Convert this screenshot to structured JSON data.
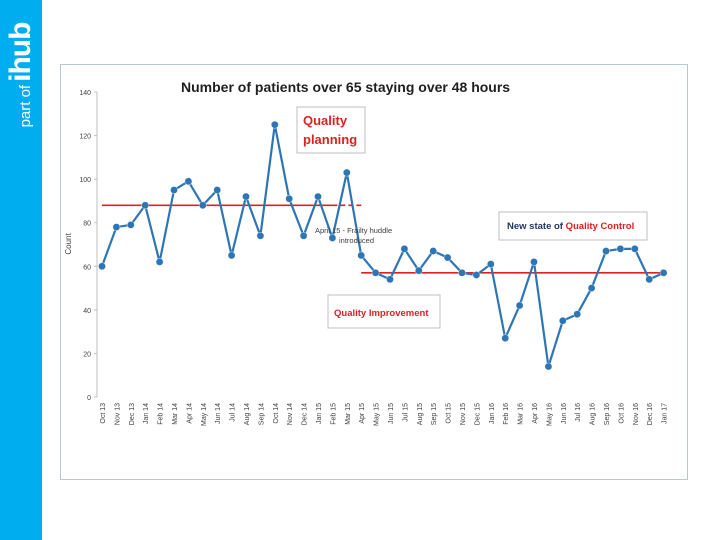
{
  "brand": {
    "prefix": "part of",
    "name": "ihub",
    "color": "#00aeef"
  },
  "chart_data": {
    "type": "line",
    "title": "Number of patients over 65 staying over 48 hours",
    "ylabel": "Count",
    "xlabel": "",
    "ylim": [
      0,
      140
    ],
    "yticks": [
      0,
      20,
      40,
      60,
      80,
      100,
      120,
      140
    ],
    "grid": false,
    "categories": [
      "Oct 13",
      "Nov 13",
      "Dec 13",
      "Jan 14",
      "Feb 14",
      "Mar 14",
      "Apr 14",
      "May 14",
      "Jun 14",
      "Jul 14",
      "Aug 14",
      "Sep 14",
      "Oct 14",
      "Nov 14",
      "Dec 14",
      "Jan 15",
      "Feb 15",
      "Mar 15",
      "Apr 15",
      "May 15",
      "Jun 15",
      "Jul 15",
      "Aug 15",
      "Sep 15",
      "Oct 15",
      "Nov 15",
      "Dec 15",
      "Jan 16",
      "Feb 16",
      "Mar 16",
      "Apr 16",
      "May 16",
      "Jun 16",
      "Jul 16",
      "Aug 16",
      "Sep 16",
      "Oct 16",
      "Nov 16",
      "Dec 16",
      "Jan 17"
    ],
    "series": [
      {
        "name": "",
        "color": "#2e75b6",
        "values": [
          60,
          78,
          79,
          88,
          62,
          95,
          99,
          88,
          95,
          65,
          92,
          74,
          125,
          91,
          74,
          92,
          73,
          103,
          65,
          57,
          54,
          68,
          58,
          67,
          64,
          57,
          56,
          61,
          27,
          42,
          62,
          14,
          35,
          38,
          50,
          67,
          68,
          68,
          54,
          57
        ]
      }
    ],
    "reference_lines": [
      {
        "value": 88,
        "from": "Oct 13",
        "to": "Feb 15",
        "color": "#e02020",
        "style": "solid"
      },
      {
        "value": 88,
        "from": "Feb 15",
        "to": "Apr 15",
        "color": "#e02020",
        "style": "dashed"
      },
      {
        "value": 57,
        "from": "Apr 15",
        "to": "Jan 17",
        "color": "#e02020",
        "style": "solid"
      }
    ],
    "annotations": {
      "quality_planning": "Quality planning",
      "frailty_huddle_line1": "April 15 - Frailty huddle",
      "frailty_huddle_line2": "introduced",
      "new_state_prefix": "New state of ",
      "new_state_highlight": "Quality Control",
      "quality_improvement": "Quality Improvement"
    },
    "colors": {
      "accent_red": "#e02020",
      "annotation_text": "#1f3864",
      "box_border": "#bfbfbf"
    }
  }
}
